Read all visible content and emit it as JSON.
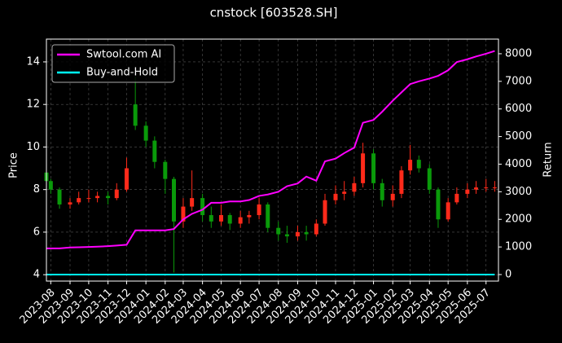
{
  "chart_data": {
    "type": "candlestick",
    "title": "cnstock [603528.SH]",
    "y_label": "Price",
    "y2_label": "Return",
    "x": [
      "2023-07-25",
      "2023-08-01",
      "2023-08-15",
      "2023-09-01",
      "2023-09-15",
      "2023-10-01",
      "2023-10-15",
      "2023-11-01",
      "2023-11-15",
      "2023-12-01",
      "2023-12-15",
      "2024-01-01",
      "2024-01-15",
      "2024-02-01",
      "2024-02-15",
      "2024-03-01",
      "2024-03-15",
      "2024-04-01",
      "2024-04-15",
      "2024-05-01",
      "2024-05-15",
      "2024-06-01",
      "2024-06-15",
      "2024-07-01",
      "2024-07-15",
      "2024-08-01",
      "2024-08-15",
      "2024-09-01",
      "2024-09-15",
      "2024-10-01",
      "2024-10-15",
      "2024-11-01",
      "2024-11-15",
      "2024-12-01",
      "2024-12-15",
      "2025-01-01",
      "2025-01-15",
      "2025-02-01",
      "2025-02-15",
      "2025-03-01",
      "2025-03-15",
      "2025-04-01",
      "2025-04-15",
      "2025-05-01",
      "2025-05-15",
      "2025-06-01",
      "2025-06-15",
      "2025-07-01",
      "2025-07-15"
    ],
    "open": [
      8.8,
      8.4,
      8.0,
      7.3,
      7.4,
      7.6,
      7.6,
      7.7,
      7.6,
      8.0,
      12.0,
      11.0,
      10.3,
      9.3,
      8.5,
      6.5,
      7.2,
      7.6,
      6.8,
      6.5,
      6.8,
      6.4,
      6.7,
      6.8,
      7.3,
      6.2,
      5.9,
      5.8,
      6.0,
      5.9,
      6.4,
      7.5,
      7.8,
      7.9,
      8.3,
      9.7,
      8.3,
      7.5,
      7.8,
      8.9,
      9.4,
      9.0,
      8.0,
      6.6,
      7.4,
      7.8,
      8.0,
      8.1,
      8.1
    ],
    "high": [
      8.9,
      8.5,
      8.1,
      7.6,
      7.9,
      8.0,
      7.9,
      7.9,
      8.3,
      9.5,
      13.3,
      11.2,
      10.5,
      9.4,
      8.6,
      7.6,
      8.9,
      7.8,
      7.2,
      7.3,
      6.9,
      7.0,
      7.0,
      7.6,
      7.4,
      6.5,
      6.3,
      6.3,
      6.3,
      6.6,
      7.8,
      8.2,
      8.4,
      8.6,
      10.2,
      9.9,
      8.5,
      8.2,
      9.1,
      10.1,
      9.6,
      9.2,
      8.1,
      7.6,
      8.1,
      8.3,
      8.4,
      8.5,
      8.4
    ],
    "low": [
      8.2,
      7.8,
      7.1,
      7.1,
      7.3,
      7.4,
      7.4,
      7.3,
      7.5,
      7.9,
      10.8,
      10.0,
      9.0,
      7.8,
      4.1,
      6.2,
      7.0,
      6.5,
      6.2,
      6.3,
      6.1,
      6.2,
      6.4,
      6.6,
      6.0,
      5.6,
      5.5,
      5.6,
      5.6,
      5.8,
      6.3,
      7.3,
      7.5,
      7.7,
      8.1,
      8.0,
      7.2,
      7.2,
      7.6,
      8.7,
      8.8,
      7.8,
      6.2,
      6.5,
      7.3,
      7.6,
      7.8,
      7.9,
      7.9
    ],
    "close": [
      8.4,
      8.0,
      7.3,
      7.4,
      7.6,
      7.6,
      7.7,
      7.6,
      8.0,
      9.0,
      11.0,
      10.3,
      9.3,
      8.5,
      6.5,
      7.2,
      7.6,
      6.8,
      6.5,
      6.8,
      6.4,
      6.7,
      6.8,
      7.3,
      6.2,
      5.9,
      5.8,
      6.0,
      5.9,
      6.4,
      7.5,
      7.8,
      7.9,
      8.3,
      9.7,
      8.3,
      7.5,
      7.8,
      8.9,
      9.4,
      9.0,
      8.0,
      6.6,
      7.4,
      7.8,
      8.0,
      8.1,
      8.1,
      8.1
    ],
    "up_color": "#ff2a1a",
    "down_color": "#0a9a0a",
    "series": [
      {
        "name": "Swtool.com AI",
        "color": "#ff00ff",
        "axis": "y2",
        "values": [
          950,
          950,
          950,
          980,
          990,
          1000,
          1010,
          1030,
          1050,
          1080,
          1600,
          1600,
          1600,
          1600,
          1650,
          2000,
          2200,
          2350,
          2600,
          2600,
          2650,
          2650,
          2700,
          2850,
          2900,
          3000,
          3200,
          3300,
          3550,
          3400,
          4100,
          4200,
          4400,
          4600,
          5500,
          5600,
          5900,
          6300,
          6600,
          6900,
          7000,
          7100,
          7200,
          7400,
          7700,
          7800,
          7900,
          8000,
          8100
        ]
      },
      {
        "name": "Buy-and-Hold",
        "color": "#00ffff",
        "axis": "y2",
        "values": [
          0,
          0,
          0,
          0,
          0,
          0,
          0,
          0,
          0,
          0,
          0,
          0,
          0,
          0,
          0,
          0,
          0,
          0,
          0,
          0,
          0,
          0,
          0,
          0,
          0,
          0,
          0,
          0,
          0,
          0,
          0,
          0,
          0,
          0,
          0,
          0,
          0,
          0,
          0,
          0,
          0,
          0,
          0,
          0,
          0,
          0,
          0,
          0,
          0
        ]
      }
    ],
    "xlim": [
      "2023-07-25",
      "2025-07-21"
    ],
    "xticks": [
      {
        "value": "2023-08-01",
        "label": "2023-08"
      },
      {
        "value": "2023-09-01",
        "label": "2023-09"
      },
      {
        "value": "2023-10-01",
        "label": "2023-10"
      },
      {
        "value": "2023-11-01",
        "label": "2023-11"
      },
      {
        "value": "2023-12-01",
        "label": "2023-12"
      },
      {
        "value": "2024-01-01",
        "label": "2024-01"
      },
      {
        "value": "2024-02-01",
        "label": "2024-02"
      },
      {
        "value": "2024-03-01",
        "label": "2024-03"
      },
      {
        "value": "2024-04-01",
        "label": "2024-04"
      },
      {
        "value": "2024-05-01",
        "label": "2024-05"
      },
      {
        "value": "2024-06-01",
        "label": "2024-06"
      },
      {
        "value": "2024-07-01",
        "label": "2024-07"
      },
      {
        "value": "2024-08-01",
        "label": "2024-08"
      },
      {
        "value": "2024-09-01",
        "label": "2024-09"
      },
      {
        "value": "2024-10-01",
        "label": "2024-10"
      },
      {
        "value": "2024-11-01",
        "label": "2024-11"
      },
      {
        "value": "2024-12-01",
        "label": "2024-12"
      },
      {
        "value": "2025-01-01",
        "label": "2025-01"
      },
      {
        "value": "2025-02-01",
        "label": "2025-02"
      },
      {
        "value": "2025-03-01",
        "label": "2025-03"
      },
      {
        "value": "2025-04-01",
        "label": "2025-04"
      },
      {
        "value": "2025-05-01",
        "label": "2025-05"
      },
      {
        "value": "2025-06-01",
        "label": "2025-06"
      },
      {
        "value": "2025-07-01",
        "label": "2025-07"
      }
    ],
    "ylim": [
      3.7,
      15.07
    ],
    "yticks": [
      4,
      6,
      8,
      10,
      12,
      14
    ],
    "y2lim": [
      -236,
      8530
    ],
    "y2ticks": [
      0,
      1000,
      2000,
      3000,
      4000,
      5000,
      6000,
      7000,
      8000
    ],
    "grid": true,
    "legend": "upper left"
  }
}
